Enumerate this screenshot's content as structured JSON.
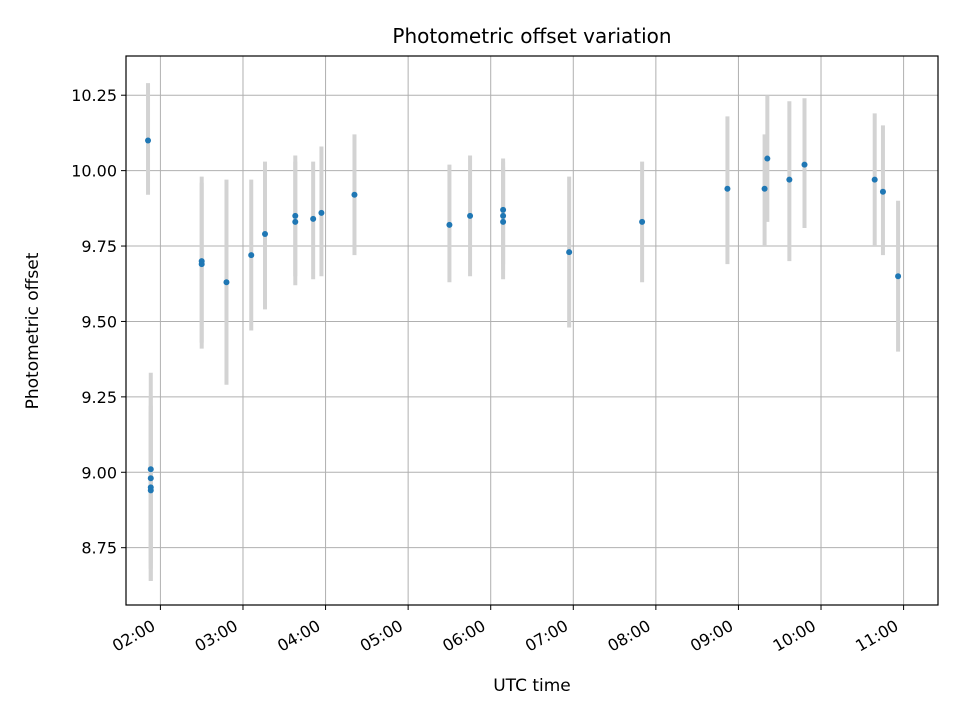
{
  "chart_data": {
    "type": "scatter",
    "title": "Photometric offset variation",
    "xlabel": "UTC time",
    "ylabel": "Photometric offset",
    "x_ticks": [
      "02:00",
      "03:00",
      "04:00",
      "05:00",
      "06:00",
      "07:00",
      "08:00",
      "09:00",
      "10:00",
      "11:00"
    ],
    "y_ticks": [
      "8.75",
      "9.00",
      "9.25",
      "9.50",
      "9.75",
      "10.00",
      "10.25"
    ],
    "xlim": [
      "01:35",
      "11:25"
    ],
    "ylim": [
      8.56,
      10.38
    ],
    "grid": true,
    "point_color": "#1f77b4",
    "errorbar_color": "#d3d3d3",
    "series": [
      {
        "points": [
          {
            "t": "01:51",
            "y": 10.1,
            "lo": 9.92,
            "hi": 10.29
          },
          {
            "t": "01:53",
            "y": 9.01,
            "lo": 8.68,
            "hi": 9.33
          },
          {
            "t": "01:53",
            "y": 8.98,
            "lo": 8.7,
            "hi": 9.25
          },
          {
            "t": "01:53",
            "y": 8.95,
            "lo": 8.64,
            "hi": 9.22
          },
          {
            "t": "01:53",
            "y": 8.94,
            "lo": 8.64,
            "hi": 9.2
          },
          {
            "t": "02:30",
            "y": 9.7,
            "lo": 9.41,
            "hi": 9.98
          },
          {
            "t": "02:30",
            "y": 9.69,
            "lo": 9.43,
            "hi": 9.96
          },
          {
            "t": "02:48",
            "y": 9.63,
            "lo": 9.29,
            "hi": 9.97
          },
          {
            "t": "03:06",
            "y": 9.72,
            "lo": 9.47,
            "hi": 9.97
          },
          {
            "t": "03:16",
            "y": 9.79,
            "lo": 9.54,
            "hi": 10.03
          },
          {
            "t": "03:38",
            "y": 9.85,
            "lo": 9.65,
            "hi": 10.05
          },
          {
            "t": "03:38",
            "y": 9.83,
            "lo": 9.62,
            "hi": 10.03
          },
          {
            "t": "03:51",
            "y": 9.84,
            "lo": 9.64,
            "hi": 10.03
          },
          {
            "t": "03:57",
            "y": 9.86,
            "lo": 9.65,
            "hi": 10.08
          },
          {
            "t": "04:21",
            "y": 9.92,
            "lo": 9.72,
            "hi": 10.12
          },
          {
            "t": "05:30",
            "y": 9.82,
            "lo": 9.63,
            "hi": 10.02
          },
          {
            "t": "05:45",
            "y": 9.85,
            "lo": 9.65,
            "hi": 10.05
          },
          {
            "t": "06:09",
            "y": 9.87,
            "lo": 9.69,
            "hi": 10.04
          },
          {
            "t": "06:09",
            "y": 9.85,
            "lo": 9.67,
            "hi": 10.03
          },
          {
            "t": "06:09",
            "y": 9.83,
            "lo": 9.64,
            "hi": 10.01
          },
          {
            "t": "06:57",
            "y": 9.73,
            "lo": 9.48,
            "hi": 9.98
          },
          {
            "t": "07:50",
            "y": 9.83,
            "lo": 9.63,
            "hi": 10.03
          },
          {
            "t": "08:52",
            "y": 9.94,
            "lo": 9.69,
            "hi": 10.18
          },
          {
            "t": "09:19",
            "y": 9.94,
            "lo": 9.75,
            "hi": 10.12
          },
          {
            "t": "09:21",
            "y": 10.04,
            "lo": 9.83,
            "hi": 10.25
          },
          {
            "t": "09:37",
            "y": 9.97,
            "lo": 9.7,
            "hi": 10.23
          },
          {
            "t": "09:48",
            "y": 10.02,
            "lo": 9.81,
            "hi": 10.24
          },
          {
            "t": "10:39",
            "y": 9.97,
            "lo": 9.75,
            "hi": 10.19
          },
          {
            "t": "10:45",
            "y": 9.93,
            "lo": 9.72,
            "hi": 10.15
          },
          {
            "t": "10:56",
            "y": 9.65,
            "lo": 9.4,
            "hi": 9.9
          }
        ]
      }
    ]
  }
}
